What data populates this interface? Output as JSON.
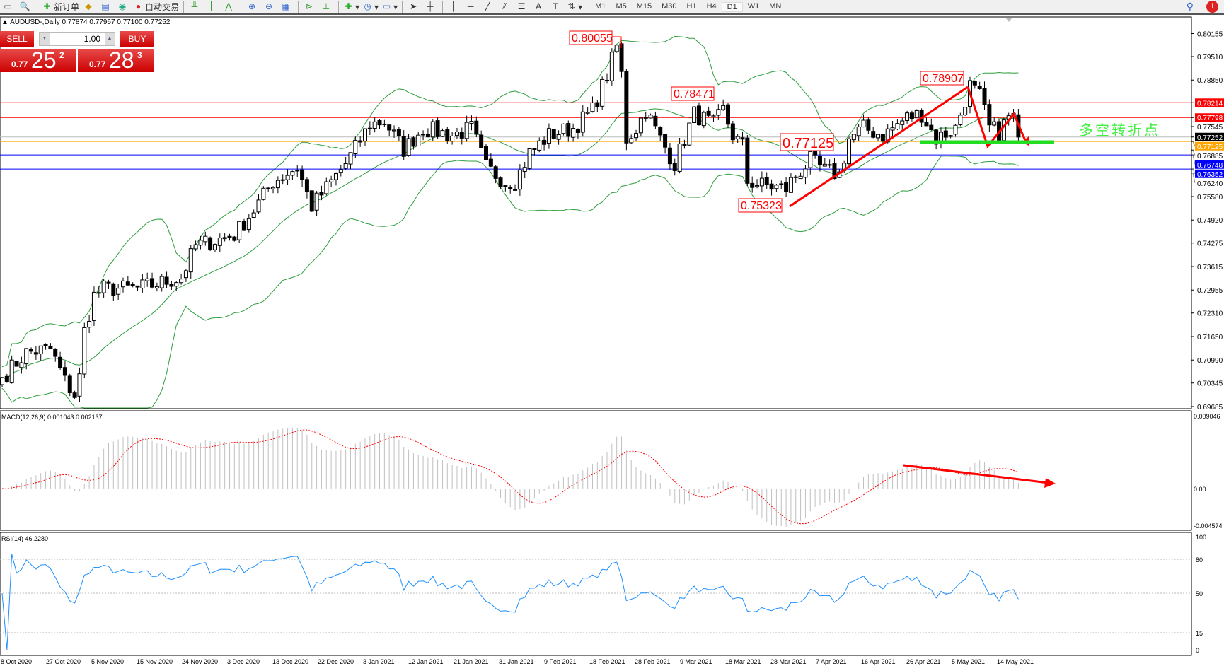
{
  "toolbar": {
    "new_order": "新订单",
    "auto_trading": "自动交易",
    "timeframes": [
      "M1",
      "M5",
      "M15",
      "M30",
      "H1",
      "H4",
      "D1",
      "W1",
      "MN"
    ],
    "active_timeframe": "D1",
    "notification_count": "1"
  },
  "chart": {
    "symbol_line": "AUDUSD-,Daily  0.77874 0.77967 0.77100 0.77252"
  },
  "trade_panel": {
    "sell_label": "SELL",
    "buy_label": "BUY",
    "lots": "1.00",
    "sell_prefix": "0.77",
    "sell_big": "25",
    "sell_sup": "2",
    "buy_prefix": "0.77",
    "buy_big": "28",
    "buy_sup": "3"
  },
  "price_axis": [
    "0.80155",
    "0.79510",
    "0.78850",
    "0.78214",
    "0.77798",
    "0.77545",
    "0.77252",
    "0.77125",
    "0.76885",
    "0.76748",
    "0.76352",
    "0.76240",
    "0.75580",
    "0.74920",
    "0.74275",
    "0.73615",
    "0.72955",
    "0.72310",
    "0.71650",
    "0.70990",
    "0.70345",
    "0.69685"
  ],
  "levels": [
    {
      "price": "0.78214",
      "color": "#ff0000"
    },
    {
      "price": "0.77798",
      "color": "#ff0000"
    },
    {
      "price": "0.77252",
      "color": "#000000"
    },
    {
      "price": "0.77125",
      "color": "#ffa500"
    },
    {
      "price": "0.76748",
      "color": "#0000ff"
    },
    {
      "price": "0.76352",
      "color": "#0000ff"
    }
  ],
  "annotations": {
    "high1": "0.80055",
    "high2": "0.78471",
    "mid": "0.77125",
    "low": "0.75323",
    "high3": "0.78907",
    "pivot_text": "多空转折点"
  },
  "macd": {
    "label": "MACD(12,26,9) 0.001043 0.002137",
    "axis": [
      "0.009046",
      "0.00",
      "-0.004574"
    ]
  },
  "rsi": {
    "label": "RSI(14) 46.2280",
    "axis": [
      "100",
      "80",
      "50",
      "15",
      "0"
    ]
  },
  "dates": [
    "8 Oct 2020",
    "27 Oct 2020",
    "5 Nov 2020",
    "15 Nov 2020",
    "24 Nov 2020",
    "3 Dec 2020",
    "13 Dec 2020",
    "22 Dec 2020",
    "3 Jan 2021",
    "12 Jan 2021",
    "21 Jan 2021",
    "31 Jan 2021",
    "9 Feb 2021",
    "18 Feb 2021",
    "28 Feb 2021",
    "9 Mar 2021",
    "18 Mar 2021",
    "28 Mar 2021",
    "7 Apr 2021",
    "16 Apr 2021",
    "26 Apr 2021",
    "5 May 2021",
    "14 May 2021"
  ],
  "chart_data": {
    "type": "candlestick",
    "close_anchors": [
      [
        0,
        0.705
      ],
      [
        5,
        0.712
      ],
      [
        10,
        0.713
      ],
      [
        13,
        0.704
      ],
      [
        15,
        0.7
      ],
      [
        16,
        0.705
      ],
      [
        17,
        0.718
      ],
      [
        19,
        0.728
      ],
      [
        21,
        0.73
      ],
      [
        28,
        0.73
      ],
      [
        37,
        0.733
      ],
      [
        40,
        0.742
      ],
      [
        48,
        0.745
      ],
      [
        52,
        0.752
      ],
      [
        56,
        0.76
      ],
      [
        61,
        0.764
      ],
      [
        64,
        0.753
      ],
      [
        71,
        0.765
      ],
      [
        76,
        0.776
      ],
      [
        79,
        0.777
      ],
      [
        83,
        0.769
      ],
      [
        87,
        0.775
      ],
      [
        93,
        0.773
      ],
      [
        97,
        0.775
      ],
      [
        100,
        0.764
      ],
      [
        104,
        0.76
      ],
      [
        106,
        0.76
      ],
      [
        109,
        0.768
      ],
      [
        113,
        0.773
      ],
      [
        118,
        0.775
      ],
      [
        122,
        0.78
      ],
      [
        125,
        0.79
      ],
      [
        127,
        0.798
      ],
      [
        128,
        0.79
      ],
      [
        129,
        0.772
      ],
      [
        131,
        0.775
      ],
      [
        133,
        0.78
      ],
      [
        136,
        0.772
      ],
      [
        139,
        0.765
      ],
      [
        141,
        0.772
      ],
      [
        143,
        0.779
      ],
      [
        147,
        0.776
      ],
      [
        149,
        0.78
      ],
      [
        151,
        0.773
      ],
      [
        153,
        0.77
      ],
      [
        154,
        0.76
      ],
      [
        157,
        0.759
      ],
      [
        162,
        0.758
      ],
      [
        163,
        0.76
      ],
      [
        167,
        0.766
      ],
      [
        170,
        0.763
      ],
      [
        173,
        0.762
      ],
      [
        175,
        0.772
      ],
      [
        178,
        0.775
      ],
      [
        182,
        0.773
      ],
      [
        187,
        0.778
      ],
      [
        190,
        0.779
      ],
      [
        193,
        0.772
      ],
      [
        197,
        0.775
      ],
      [
        200,
        0.787
      ],
      [
        202,
        0.784
      ],
      [
        204,
        0.775
      ],
      [
        206,
        0.774
      ],
      [
        208,
        0.778
      ],
      [
        209,
        0.778
      ],
      [
        210,
        0.7725
      ]
    ],
    "price_range": [
      0.69685,
      0.80155
    ],
    "macd_range": [
      -0.004574,
      0.009046
    ],
    "rsi_levels": [
      80,
      50,
      15
    ]
  }
}
